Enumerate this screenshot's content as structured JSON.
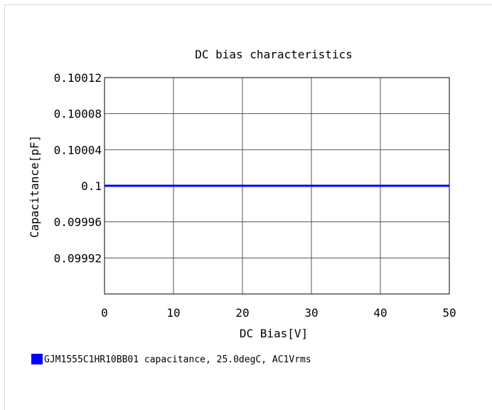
{
  "chart_data": {
    "type": "line",
    "title": "DC bias characteristics",
    "xlabel": "DC Bias[V]",
    "ylabel": "Capacitance[pF]",
    "xlim": [
      0,
      50
    ],
    "ylim": [
      0.09988,
      0.10012
    ],
    "x_ticks": [
      "0",
      "10",
      "20",
      "30",
      "40",
      "50"
    ],
    "y_ticks": [
      "0.10012",
      "0.10008",
      "0.10004",
      "0.1",
      "0.09996",
      "0.09992"
    ],
    "y_tick_values": [
      0.10012,
      0.10008,
      0.10004,
      0.1,
      0.09996,
      0.09992
    ],
    "x_tick_values": [
      0,
      10,
      20,
      30,
      40,
      50
    ],
    "grid": true,
    "legend_position": "bottom-left",
    "series": [
      {
        "name": "GJM1555C1HR10BB01 capacitance, 25.0degC, AC1Vrms",
        "color": "#0000ff",
        "x": [
          0,
          5,
          10,
          15,
          20,
          25,
          30,
          35,
          40,
          45,
          50
        ],
        "values": [
          0.1,
          0.1,
          0.1,
          0.1,
          0.1,
          0.1,
          0.1,
          0.1,
          0.1,
          0.1,
          0.1
        ]
      }
    ]
  }
}
